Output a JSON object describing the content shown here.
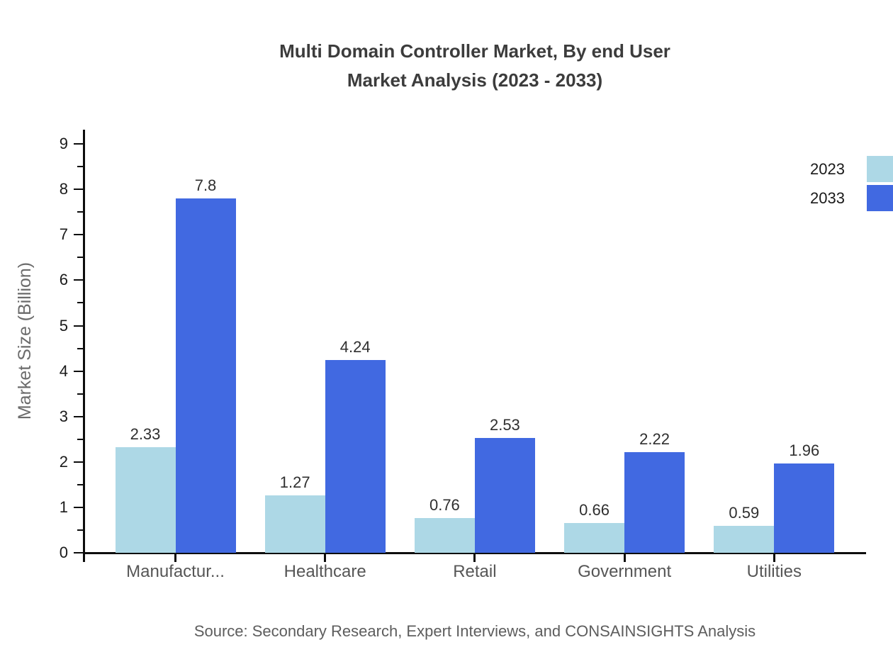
{
  "title": {
    "line1": "Multi Domain Controller Market, By end User",
    "line2": "Market Analysis (2023 - 2033)"
  },
  "source": "Source: Secondary Research, Expert Interviews, and CONSAINSIGHTS Analysis",
  "chart_data": {
    "type": "bar",
    "title": "Multi Domain Controller Market, By end User Market Analysis (2023 - 2033)",
    "categories": [
      "Manufactur...",
      "Healthcare",
      "Retail",
      "Government",
      "Utilities"
    ],
    "series": [
      {
        "name": "2023",
        "color": "#add8e6",
        "values": [
          2.33,
          1.27,
          0.76,
          0.66,
          0.59
        ],
        "labels": [
          "2.33",
          "1.27",
          "0.76",
          "0.66",
          "0.59"
        ]
      },
      {
        "name": "2033",
        "color": "#4169e1",
        "values": [
          7.8,
          4.24,
          2.53,
          2.22,
          1.96
        ],
        "labels": [
          "7.8",
          "4.24",
          "2.53",
          "2.22",
          "1.96"
        ]
      }
    ],
    "xlabel": "",
    "ylabel": "Market Size (Billion)",
    "ylim": [
      0,
      9
    ],
    "yticks": [
      0,
      1,
      2,
      3,
      4,
      5,
      6,
      7,
      8,
      9
    ],
    "minor_tick_step": 0.5,
    "grid": false,
    "legend_position": "top-right"
  }
}
